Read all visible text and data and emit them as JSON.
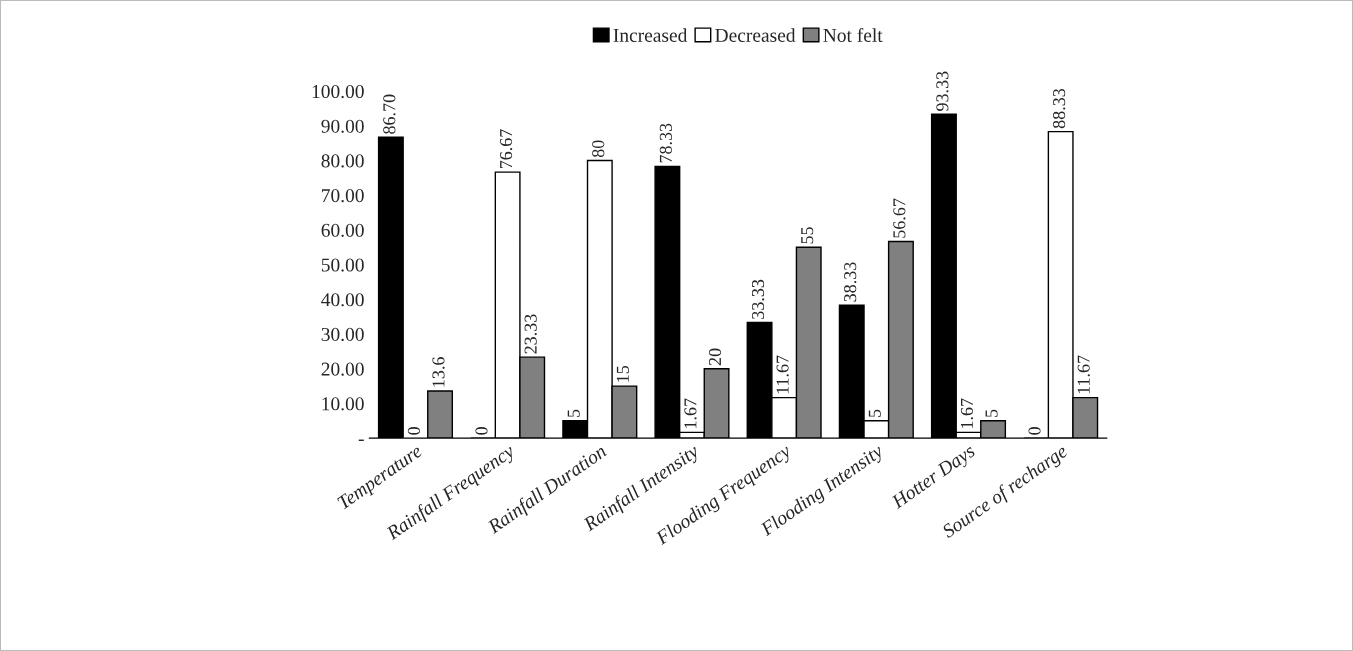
{
  "chart_data": {
    "type": "bar",
    "categories": [
      "Temperature",
      "Rainfall Frequency",
      "Rainfall Duration",
      "Rainfall Intensity",
      "Flooding Frequency",
      "Flooding Intensity",
      "Hotter Days",
      "Source of recharge"
    ],
    "series": [
      {
        "name": "Increased",
        "color": "#000000",
        "values": [
          86.7,
          0,
          5,
          78.33,
          33.33,
          38.33,
          93.33,
          0
        ],
        "value_labels": [
          "86.70",
          "0",
          "5",
          "78.33",
          "33.33",
          "38.33",
          "93.33",
          "0"
        ]
      },
      {
        "name": "Decreased",
        "color": "#ffffff",
        "values": [
          0,
          76.67,
          80,
          1.67,
          11.67,
          5,
          1.67,
          88.33
        ],
        "value_labels": [
          "0",
          "76.67",
          "80",
          "1.67",
          "11.67",
          "5",
          "1.67",
          "88.33"
        ]
      },
      {
        "name": "Not felt",
        "color": "#808080",
        "values": [
          13.6,
          23.33,
          15,
          20,
          55,
          56.67,
          5,
          11.67
        ],
        "value_labels": [
          "13.6",
          "23.33",
          "15",
          "20",
          "55",
          "56.67",
          "5",
          "11.67"
        ]
      }
    ],
    "ylim": [
      0,
      100
    ],
    "yticks": [
      {
        "value": 0,
        "label": "-"
      },
      {
        "value": 10,
        "label": "10.00"
      },
      {
        "value": 20,
        "label": "20.00"
      },
      {
        "value": 30,
        "label": "30.00"
      },
      {
        "value": 40,
        "label": "40.00"
      },
      {
        "value": 50,
        "label": "50.00"
      },
      {
        "value": 60,
        "label": "60.00"
      },
      {
        "value": 70,
        "label": "70.00"
      },
      {
        "value": 80,
        "label": "80.00"
      },
      {
        "value": 90,
        "label": "90.00"
      },
      {
        "value": 100,
        "label": "100.00"
      }
    ],
    "grid": false,
    "legend": "top"
  }
}
